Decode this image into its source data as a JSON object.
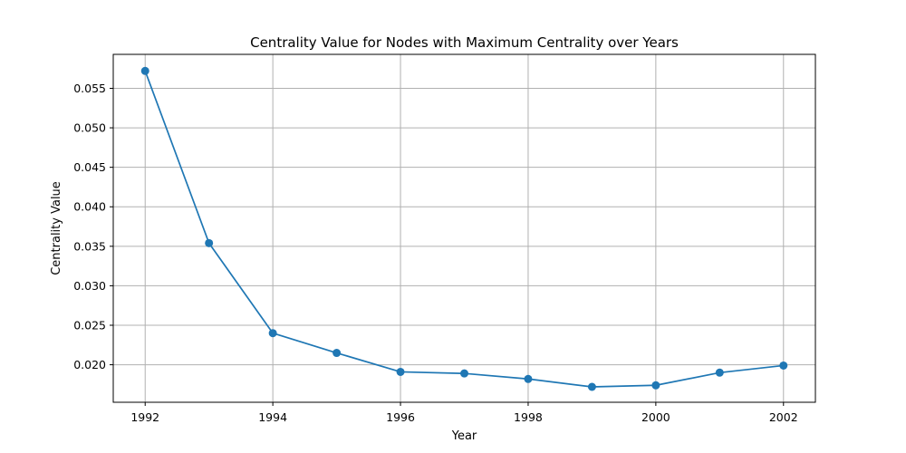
{
  "chart_data": {
    "type": "line",
    "title": "Centrality Value for Nodes with Maximum Centrality over Years",
    "xlabel": "Year",
    "ylabel": "Centrality Value",
    "x": [
      1992,
      1993,
      1994,
      1995,
      1996,
      1997,
      1998,
      1999,
      2000,
      2001,
      2002
    ],
    "series": [
      {
        "values": [
          0.0572,
          0.0354,
          0.024,
          0.0215,
          0.0191,
          0.0189,
          0.0182,
          0.0172,
          0.0174,
          0.019,
          0.0199
        ]
      }
    ],
    "xlim": [
      1991.5,
      2002.5
    ],
    "ylim": [
      0.01525,
      0.0593
    ],
    "xticks": [
      1992,
      1994,
      1996,
      1998,
      2000,
      2002
    ],
    "xtick_labels": [
      "1992",
      "1994",
      "1996",
      "1998",
      "2000",
      "2002"
    ],
    "yticks": [
      0.02,
      0.025,
      0.03,
      0.035,
      0.04,
      0.045,
      0.05,
      0.055
    ],
    "ytick_labels": [
      "0.020",
      "0.025",
      "0.030",
      "0.035",
      "0.040",
      "0.045",
      "0.050",
      "0.055"
    ],
    "grid": true,
    "marker": "circle",
    "color": "#1f77b4",
    "grid_color": "#b0b0b0"
  }
}
